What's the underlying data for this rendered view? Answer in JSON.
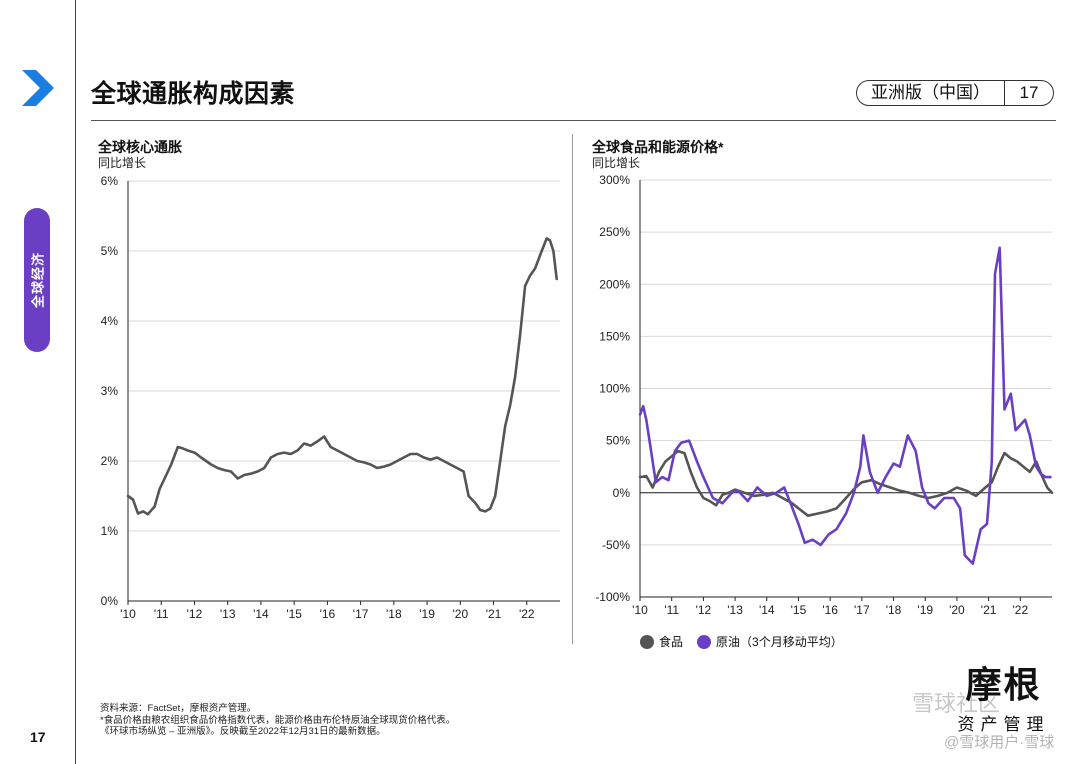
{
  "page": {
    "title": "全球通胀构成因素",
    "edition": "亚洲版（中国）",
    "page_number": "17",
    "side_tab": "全球经济",
    "accent_color": "#6a3fc4"
  },
  "footnotes": [
    "资料来源：FactSet，摩根资产管理。",
    "*食品价格由粮农组织食品价格指数代表，能源价格由布伦特原油全球现货价格代表。",
    "《环球市场纵览 – 亚洲版》。反映截至2022年12月31日的最新数据。"
  ],
  "logo": {
    "main": "摩根",
    "sub": "资产管理"
  },
  "watermarks": [
    "雪球社区",
    "@雪球用户·雪球"
  ],
  "legend": [
    {
      "label": "食品",
      "color": "#555555"
    },
    {
      "label": "原油（3个月移动平均）",
      "color": "#6a3fc4"
    }
  ],
  "chart_data": [
    {
      "type": "line",
      "title": "全球核心通胀",
      "subtitle": "同比增长",
      "ylim": [
        0,
        6
      ],
      "yticks": [
        "0%",
        "1%",
        "2%",
        "3%",
        "4%",
        "5%",
        "6%"
      ],
      "xlim": [
        2010,
        2023
      ],
      "xticks": [
        "'10",
        "'11",
        "'12",
        "'13",
        "'14",
        "'15",
        "'16",
        "'17",
        "'18",
        "'19",
        "'20",
        "'21",
        "'22"
      ],
      "series": [
        {
          "name": "全球核心通胀",
          "color": "#555555",
          "x": [
            2010.0,
            2010.15,
            2010.3,
            2010.45,
            2010.6,
            2010.8,
            2010.95,
            2011.1,
            2011.3,
            2011.5,
            2011.65,
            2011.8,
            2012.0,
            2012.2,
            2012.35,
            2012.5,
            2012.7,
            2012.9,
            2013.1,
            2013.3,
            2013.5,
            2013.7,
            2013.9,
            2014.1,
            2014.3,
            2014.5,
            2014.7,
            2014.9,
            2015.1,
            2015.3,
            2015.5,
            2015.7,
            2015.9,
            2016.1,
            2016.3,
            2016.5,
            2016.7,
            2016.9,
            2017.1,
            2017.3,
            2017.5,
            2017.7,
            2017.9,
            2018.1,
            2018.3,
            2018.5,
            2018.7,
            2018.9,
            2019.1,
            2019.3,
            2019.5,
            2019.7,
            2019.9,
            2020.1,
            2020.25,
            2020.45,
            2020.6,
            2020.75,
            2020.9,
            2021.05,
            2021.2,
            2021.35,
            2021.5,
            2021.65,
            2021.8,
            2021.95,
            2022.1,
            2022.25,
            2022.45,
            2022.6,
            2022.7,
            2022.8,
            2022.9
          ],
          "values": [
            1.5,
            1.45,
            1.25,
            1.28,
            1.24,
            1.35,
            1.6,
            1.75,
            1.95,
            2.2,
            2.18,
            2.15,
            2.12,
            2.05,
            2.0,
            1.95,
            1.9,
            1.87,
            1.85,
            1.75,
            1.8,
            1.82,
            1.85,
            1.9,
            2.05,
            2.1,
            2.12,
            2.1,
            2.15,
            2.25,
            2.22,
            2.28,
            2.35,
            2.2,
            2.15,
            2.1,
            2.05,
            2.0,
            1.98,
            1.95,
            1.9,
            1.92,
            1.95,
            2.0,
            2.05,
            2.1,
            2.1,
            2.05,
            2.02,
            2.05,
            2.0,
            1.95,
            1.9,
            1.85,
            1.5,
            1.4,
            1.3,
            1.28,
            1.32,
            1.5,
            2.0,
            2.5,
            2.8,
            3.2,
            3.8,
            4.5,
            4.65,
            4.75,
            5.0,
            5.18,
            5.15,
            5.0,
            4.6
          ]
        }
      ]
    },
    {
      "type": "line",
      "title": "全球食品和能源价格*",
      "subtitle": "同比增长",
      "ylim": [
        -100,
        300
      ],
      "yticks": [
        "-100%",
        "-50%",
        "0%",
        "50%",
        "100%",
        "150%",
        "200%",
        "250%",
        "300%"
      ],
      "xlim": [
        2010,
        2023
      ],
      "xticks": [
        "'10",
        "'11",
        "'12",
        "'13",
        "'14",
        "'15",
        "'16",
        "'17",
        "'18",
        "'19",
        "'20",
        "'21",
        "'22"
      ],
      "series": [
        {
          "name": "食品",
          "color": "#555555",
          "x": [
            2010.0,
            2010.2,
            2010.4,
            2010.6,
            2010.8,
            2011.0,
            2011.2,
            2011.4,
            2011.6,
            2011.8,
            2012.0,
            2012.2,
            2012.4,
            2012.6,
            2012.8,
            2013.0,
            2013.3,
            2013.6,
            2013.9,
            2014.2,
            2014.5,
            2014.8,
            2015.0,
            2015.3,
            2015.6,
            2015.9,
            2016.2,
            2016.5,
            2016.8,
            2017.0,
            2017.3,
            2017.6,
            2017.9,
            2018.2,
            2018.5,
            2018.8,
            2019.1,
            2019.4,
            2019.7,
            2020.0,
            2020.3,
            2020.6,
            2020.9,
            2021.1,
            2021.3,
            2021.5,
            2021.7,
            2021.9,
            2022.1,
            2022.3,
            2022.5,
            2022.7,
            2022.85,
            2023.0
          ],
          "values": [
            15,
            16,
            5,
            20,
            30,
            35,
            40,
            38,
            20,
            5,
            -5,
            -8,
            -12,
            -2,
            0,
            3,
            0,
            -3,
            -2,
            0,
            -5,
            -10,
            -15,
            -22,
            -20,
            -18,
            -15,
            -5,
            5,
            10,
            12,
            8,
            5,
            2,
            0,
            -3,
            -5,
            -3,
            0,
            5,
            2,
            -3,
            5,
            10,
            25,
            38,
            33,
            30,
            25,
            20,
            30,
            15,
            5,
            0
          ]
        },
        {
          "name": "原油（3个月移动平均）",
          "color": "#6a3fc4",
          "x": [
            2010.0,
            2010.1,
            2010.2,
            2010.35,
            2010.5,
            2010.7,
            2010.9,
            2011.1,
            2011.3,
            2011.55,
            2011.8,
            2012.0,
            2012.3,
            2012.6,
            2012.9,
            2013.1,
            2013.4,
            2013.7,
            2014.0,
            2014.3,
            2014.55,
            2014.75,
            2015.0,
            2015.2,
            2015.45,
            2015.7,
            2015.95,
            2016.2,
            2016.5,
            2016.75,
            2016.95,
            2017.05,
            2017.25,
            2017.5,
            2017.75,
            2018.0,
            2018.2,
            2018.45,
            2018.7,
            2018.9,
            2019.1,
            2019.3,
            2019.6,
            2019.9,
            2020.1,
            2020.25,
            2020.5,
            2020.75,
            2020.95,
            2021.1,
            2021.2,
            2021.35,
            2021.5,
            2021.7,
            2021.85,
            2022.0,
            2022.15,
            2022.3,
            2022.5,
            2022.65,
            2022.8,
            2022.95
          ],
          "values": [
            75,
            83,
            70,
            40,
            10,
            15,
            12,
            40,
            48,
            50,
            30,
            15,
            -5,
            -10,
            0,
            2,
            -8,
            5,
            -3,
            0,
            5,
            -10,
            -30,
            -48,
            -45,
            -50,
            -40,
            -35,
            -20,
            0,
            25,
            55,
            20,
            0,
            15,
            28,
            25,
            55,
            40,
            5,
            -10,
            -15,
            -5,
            -5,
            -15,
            -60,
            -68,
            -35,
            -30,
            30,
            210,
            235,
            80,
            95,
            60,
            65,
            70,
            55,
            25,
            18,
            15,
            15
          ]
        }
      ]
    }
  ]
}
